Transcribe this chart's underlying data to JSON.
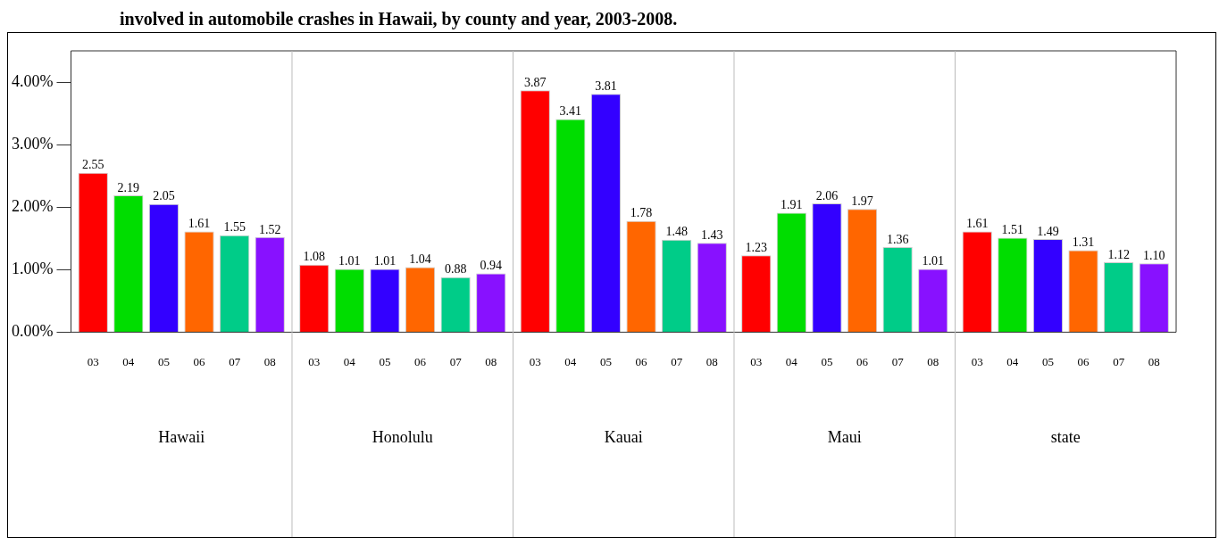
{
  "chart_data": {
    "type": "bar",
    "title": "involved in automobile crashes in Hawaii, by county and year, 2003-2008.",
    "categories": [
      "Hawaii",
      "Honolulu",
      "Kauai",
      "Maui",
      "state"
    ],
    "series": [
      {
        "name": "03",
        "color": "#ff0000",
        "values": [
          2.55,
          1.08,
          3.87,
          1.23,
          1.61
        ],
        "value_labels": [
          "2.55",
          "1.08",
          "3.87",
          "1.23",
          "1.61"
        ]
      },
      {
        "name": "04",
        "color": "#00dd00",
        "values": [
          2.19,
          1.01,
          3.41,
          1.91,
          1.51
        ],
        "value_labels": [
          "2.19",
          "1.01",
          "3.41",
          "1.91",
          "1.51"
        ]
      },
      {
        "name": "05",
        "color": "#3300ff",
        "values": [
          2.05,
          1.01,
          3.81,
          2.06,
          1.49
        ],
        "value_labels": [
          "2.05",
          "1.01",
          "3.81",
          "2.06",
          "1.49"
        ]
      },
      {
        "name": "06",
        "color": "#ff6600",
        "values": [
          1.61,
          1.04,
          1.78,
          1.97,
          1.31
        ],
        "value_labels": [
          "1.61",
          "1.04",
          "1.78",
          "1.97",
          "1.31"
        ]
      },
      {
        "name": "07",
        "color": "#00cc88",
        "values": [
          1.55,
          0.88,
          1.48,
          1.36,
          1.12
        ],
        "value_labels": [
          "1.55",
          "0.88",
          "1.48",
          "1.36",
          "1.12"
        ]
      },
      {
        "name": "08",
        "color": "#8811ff",
        "values": [
          1.52,
          0.94,
          1.43,
          1.01,
          1.1
        ],
        "value_labels": [
          "1.52",
          "0.94",
          "1.43",
          "1.01",
          "1.10"
        ]
      }
    ],
    "ylim": [
      0,
      4.5
    ],
    "yticks": [
      {
        "value": 0,
        "label": "0.00%"
      },
      {
        "value": 1,
        "label": "1.00%"
      },
      {
        "value": 2,
        "label": "2.00%"
      },
      {
        "value": 3,
        "label": "3.00%"
      },
      {
        "value": 4,
        "label": "4.00%"
      }
    ],
    "grid": "x",
    "legend": false
  }
}
